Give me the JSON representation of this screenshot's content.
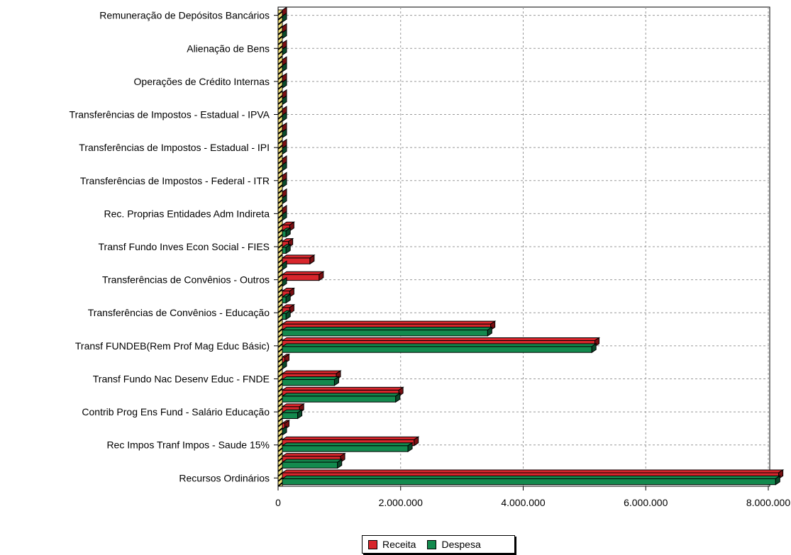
{
  "chart_data": {
    "type": "bar",
    "orientation": "horizontal",
    "categories": [
      "Remuneração de Depósitos Bancários",
      "",
      "Alienação de Bens",
      "",
      "Operações de Crédito Internas",
      "",
      "Transferências de Impostos - Estadual - IPVA",
      "",
      "Transferências de Impostos - Estadual - IPI",
      "",
      "Transferências de Impostos - Federal - ITR",
      "",
      "Rec. Proprias Entidades Adm Indireta",
      "",
      "Transf Fundo Inves Econ Social - FIES",
      "",
      "Transferências de Convênios - Outros",
      "",
      "Transferências de Convênios - Educação",
      "",
      "Transf FUNDEB(Rem Prof Mag Educ Básic)",
      "",
      "Transf Fundo Nac Desenv Educ - FNDE",
      "",
      "Contrib Prog Ens Fund - Salário Educação",
      "",
      "Rec Impos Tranf Impos - Saude 15%",
      "",
      "Recursos Ordinários"
    ],
    "series": [
      {
        "name": "Receita",
        "color": "#d8262c",
        "values": [
          0,
          0,
          0,
          0,
          0,
          0,
          0,
          0,
          0,
          0,
          0,
          0,
          0,
          120000,
          100000,
          450000,
          600000,
          120000,
          120000,
          3400000,
          5100000,
          40000,
          880000,
          1900000,
          280000,
          40000,
          2150000,
          950000,
          8100000
        ]
      },
      {
        "name": "Despesa",
        "color": "#138a4e",
        "values": [
          0,
          0,
          0,
          0,
          0,
          0,
          0,
          0,
          0,
          0,
          0,
          0,
          0,
          60000,
          60000,
          0,
          0,
          60000,
          60000,
          3350000,
          5050000,
          0,
          850000,
          1850000,
          250000,
          0,
          2050000,
          900000,
          8050000
        ]
      }
    ],
    "xlim": [
      0,
      8000000
    ],
    "xticks": [
      0,
      2000000,
      4000000,
      6000000,
      8000000
    ],
    "xtick_labels": [
      "0",
      "2.000.000",
      "4.000.000",
      "6.000.000",
      "8.000.000"
    ],
    "grid": true,
    "legend": "bottom-center"
  }
}
